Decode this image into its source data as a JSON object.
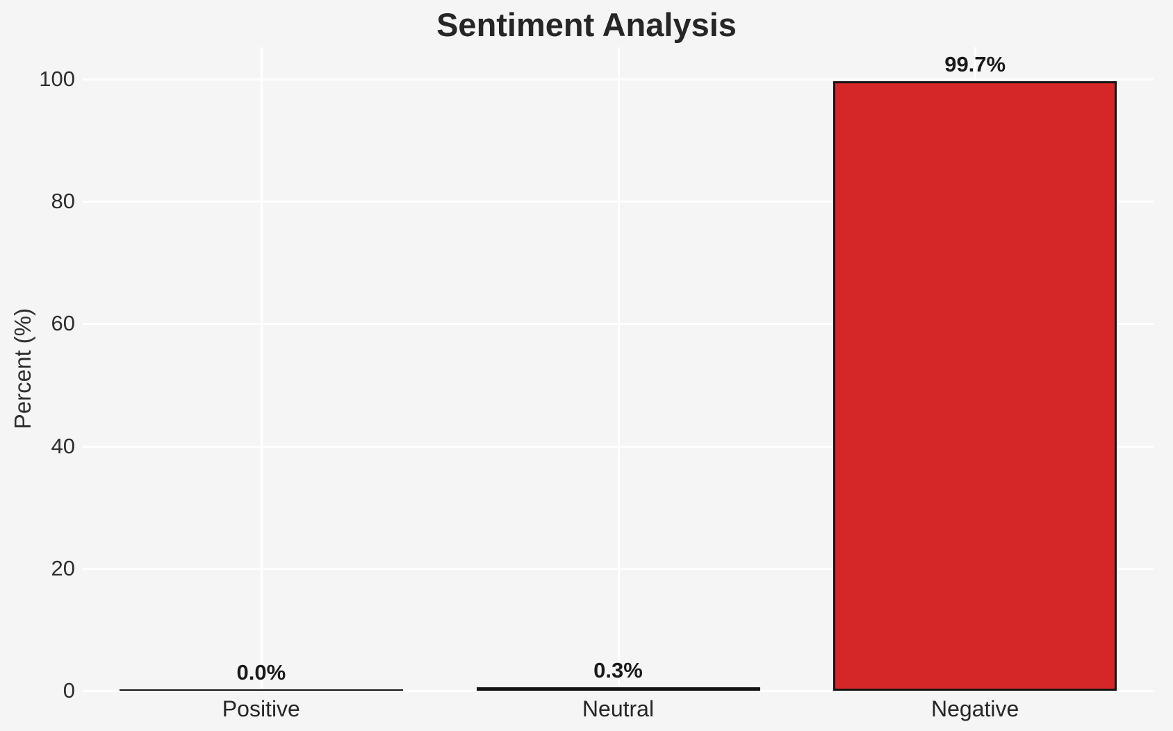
{
  "chart_data": {
    "type": "bar",
    "title": "Sentiment Analysis",
    "xlabel": "",
    "ylabel": "Percent (%)",
    "categories": [
      "Positive",
      "Neutral",
      "Negative"
    ],
    "values": [
      0.0,
      0.3,
      99.7
    ],
    "value_labels": [
      "0.0%",
      "0.3%",
      "99.7%"
    ],
    "ytick_labels": [
      "0",
      "20",
      "40",
      "60",
      "80",
      "100"
    ],
    "ytick_values": [
      0,
      20,
      40,
      60,
      80,
      100
    ],
    "ylim": [
      0,
      105
    ],
    "grid": "both",
    "legend_position": "none",
    "colors": {
      "background": "#f5f5f6",
      "gridline": "#ffffff",
      "bar_fill": "#d62728",
      "bar_edge": "#141414",
      "title_text": "#262626",
      "tick_text": "#2e2e2e",
      "value_label_text": "#1a1a1a"
    }
  }
}
